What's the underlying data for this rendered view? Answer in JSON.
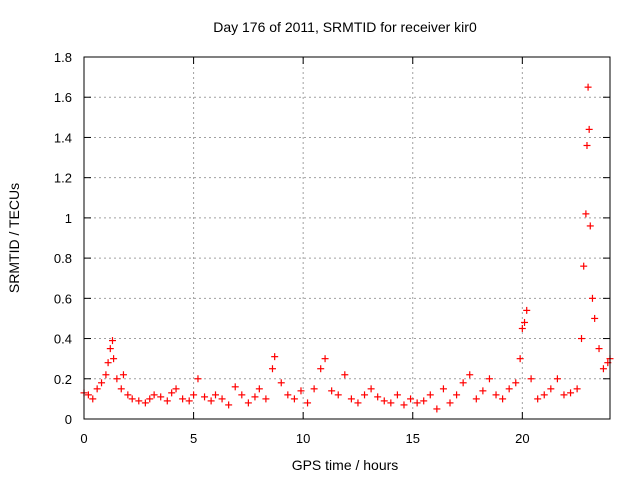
{
  "chart_data": {
    "type": "scatter",
    "title": "Day 176 of 2011, SRMTID for receiver kir0",
    "xlabel": "GPS time / hours",
    "ylabel": "SRMTID / TECUs",
    "xlim": [
      0,
      24
    ],
    "ylim": [
      0,
      1.8
    ],
    "xticks": [
      0,
      5,
      10,
      15,
      20
    ],
    "xtick_labels": [
      "0",
      "5",
      "10",
      "15",
      "20"
    ],
    "yticks": [
      0,
      0.2,
      0.4,
      0.6,
      0.8,
      1.0,
      1.2,
      1.4,
      1.6,
      1.8
    ],
    "ytick_labels": [
      "0",
      "0.2",
      "0.4",
      "0.6",
      "0.8",
      "1",
      "1.2",
      "1.4",
      "1.6",
      "1.8"
    ],
    "grid": true,
    "marker": "plus",
    "series_color": "#ff0000",
    "x": [
      0.0,
      0.2,
      0.4,
      0.6,
      0.8,
      1.0,
      1.1,
      1.2,
      1.3,
      1.35,
      1.5,
      1.7,
      1.8,
      2.0,
      2.2,
      2.5,
      2.8,
      3.0,
      3.2,
      3.5,
      3.8,
      4.0,
      4.2,
      4.5,
      4.8,
      5.0,
      5.2,
      5.5,
      5.8,
      6.0,
      6.3,
      6.6,
      6.9,
      7.2,
      7.5,
      7.8,
      8.0,
      8.3,
      8.6,
      8.7,
      9.0,
      9.3,
      9.6,
      9.9,
      10.2,
      10.5,
      10.8,
      11.0,
      11.3,
      11.6,
      11.9,
      12.2,
      12.5,
      12.8,
      13.1,
      13.4,
      13.7,
      14.0,
      14.3,
      14.6,
      14.9,
      15.2,
      15.5,
      15.8,
      16.1,
      16.4,
      16.7,
      17.0,
      17.3,
      17.6,
      17.9,
      18.2,
      18.5,
      18.8,
      19.1,
      19.4,
      19.7,
      19.9,
      20.0,
      20.1,
      20.2,
      20.4,
      20.7,
      21.0,
      21.3,
      21.6,
      21.9,
      22.2,
      22.5,
      22.7,
      22.8,
      22.9,
      22.95,
      23.0,
      23.05,
      23.1,
      23.2,
      23.3,
      23.5,
      23.7,
      23.9,
      24.0
    ],
    "y": [
      0.13,
      0.12,
      0.1,
      0.15,
      0.18,
      0.22,
      0.28,
      0.35,
      0.39,
      0.3,
      0.2,
      0.15,
      0.22,
      0.12,
      0.1,
      0.09,
      0.08,
      0.1,
      0.12,
      0.11,
      0.09,
      0.13,
      0.15,
      0.1,
      0.09,
      0.12,
      0.2,
      0.11,
      0.09,
      0.12,
      0.1,
      0.07,
      0.16,
      0.12,
      0.08,
      0.11,
      0.15,
      0.1,
      0.25,
      0.31,
      0.18,
      0.12,
      0.1,
      0.14,
      0.08,
      0.15,
      0.25,
      0.3,
      0.14,
      0.12,
      0.22,
      0.1,
      0.08,
      0.12,
      0.15,
      0.11,
      0.09,
      0.08,
      0.12,
      0.07,
      0.1,
      0.08,
      0.09,
      0.12,
      0.05,
      0.15,
      0.08,
      0.12,
      0.18,
      0.22,
      0.1,
      0.14,
      0.2,
      0.12,
      0.1,
      0.15,
      0.18,
      0.3,
      0.45,
      0.48,
      0.54,
      0.2,
      0.1,
      0.12,
      0.15,
      0.2,
      0.12,
      0.13,
      0.15,
      0.4,
      0.76,
      1.02,
      1.36,
      1.65,
      1.44,
      0.96,
      0.6,
      0.5,
      0.35,
      0.25,
      0.28,
      0.3
    ]
  }
}
